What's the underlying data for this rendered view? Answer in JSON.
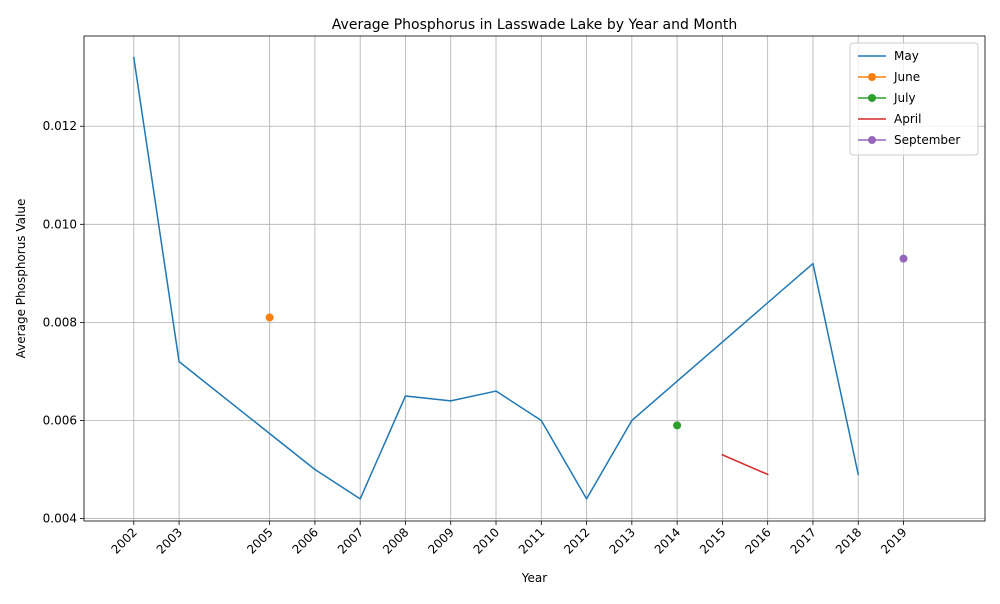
{
  "chart_data": {
    "type": "line",
    "title": "Average Phosphorus in Lasswade Lake by Year and Month",
    "xlabel": "Year",
    "ylabel": "Average Phosphorus Value",
    "xlim": [
      2000.9,
      2020.8
    ],
    "ylim": [
      0.00395,
      0.01384
    ],
    "x_ticks": [
      2002,
      2003,
      2005,
      2006,
      2007,
      2008,
      2009,
      2010,
      2011,
      2012,
      2013,
      2014,
      2015,
      2016,
      2017,
      2018,
      2019
    ],
    "y_ticks": [
      0.004,
      0.006,
      0.008,
      0.01,
      0.012
    ],
    "y_tick_labels": [
      "0.004",
      "0.006",
      "0.008",
      "0.010",
      "0.012"
    ],
    "grid": true,
    "legend_position": "top-right",
    "series": [
      {
        "name": "May",
        "color": "#1f77b4",
        "marker": false,
        "points": [
          [
            2002,
            0.0134
          ],
          [
            2003,
            0.0072
          ],
          [
            2006,
            0.005
          ],
          [
            2007,
            0.0044
          ],
          [
            2008,
            0.0065
          ],
          [
            2009,
            0.0064
          ],
          [
            2010,
            0.0066
          ],
          [
            2011,
            0.006
          ],
          [
            2012,
            0.0044
          ],
          [
            2013,
            0.006
          ],
          [
            2017,
            0.0092
          ],
          [
            2018,
            0.0049
          ]
        ]
      },
      {
        "name": "June",
        "color": "#ff7f0e",
        "marker": true,
        "points": [
          [
            2005,
            0.0081
          ]
        ]
      },
      {
        "name": "July",
        "color": "#2ca02c",
        "marker": true,
        "points": [
          [
            2014,
            0.0059
          ]
        ]
      },
      {
        "name": "April",
        "color": "#d62728",
        "marker": false,
        "points": [
          [
            2015,
            0.0053
          ],
          [
            2016,
            0.0049
          ]
        ]
      },
      {
        "name": "September",
        "color": "#9467bd",
        "marker": true,
        "points": [
          [
            2019,
            0.0093
          ]
        ]
      }
    ]
  }
}
